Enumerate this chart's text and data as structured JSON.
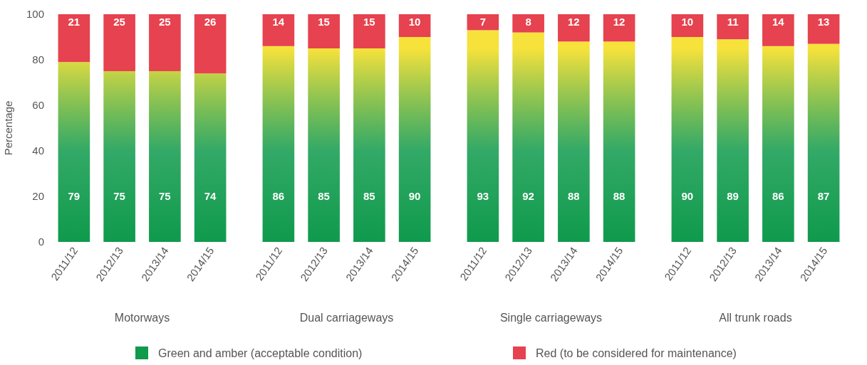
{
  "chart_data": [
    {
      "type": "bar",
      "stacked": true,
      "xlabel": "Motorways",
      "ylabel": "Percentage",
      "categories": [
        "2011/12",
        "2012/13",
        "2013/14",
        "2014/15"
      ],
      "ylim": [
        0,
        100
      ],
      "yticks": [
        0,
        20,
        40,
        60,
        80,
        100
      ],
      "data_labels": true,
      "legend": "bottom",
      "series": [
        {
          "name": "Green and amber (acceptable condition)",
          "color": "#0f9a4c",
          "values": [
            79,
            75,
            75,
            74
          ]
        },
        {
          "name": "Red (to be considered for maintenance)",
          "color": "#e6424f",
          "values": [
            21,
            25,
            25,
            26
          ]
        }
      ]
    },
    {
      "type": "bar",
      "stacked": true,
      "xlabel": "Dual carriageways",
      "categories": [
        "2011/12",
        "2012/13",
        "2013/14",
        "2014/15"
      ],
      "ylim": [
        0,
        100
      ],
      "tick_labels": "x",
      "data_labels": true,
      "series": [
        {
          "color": "#0f9a4c",
          "values": [
            86,
            85,
            85,
            90
          ]
        },
        {
          "color": "#e6424f",
          "values": [
            14,
            15,
            15,
            10
          ]
        }
      ]
    },
    {
      "type": "bar",
      "stacked": true,
      "xlabel": "Single carriageways",
      "categories": [
        "2011/12",
        "2012/13",
        "2013/14",
        "2014/15"
      ],
      "ylim": [
        0,
        100
      ],
      "tick_labels": "x",
      "data_labels": true,
      "series": [
        {
          "color": "#0f9a4c",
          "values": [
            93,
            92,
            88,
            88
          ]
        },
        {
          "color": "#e6424f",
          "values": [
            7,
            8,
            12,
            12
          ]
        }
      ]
    },
    {
      "type": "bar",
      "stacked": true,
      "xlabel": "All trunk roads",
      "categories": [
        "2011/12",
        "2012/13",
        "2013/14",
        "2014/15"
      ],
      "ylim": [
        0,
        100
      ],
      "tick_labels": "x",
      "data_labels": true,
      "series": [
        {
          "color": "#0f9a4c",
          "values": [
            90,
            89,
            86,
            87
          ]
        },
        {
          "color": "#e6424f",
          "values": [
            10,
            11,
            14,
            13
          ]
        }
      ]
    }
  ]
}
